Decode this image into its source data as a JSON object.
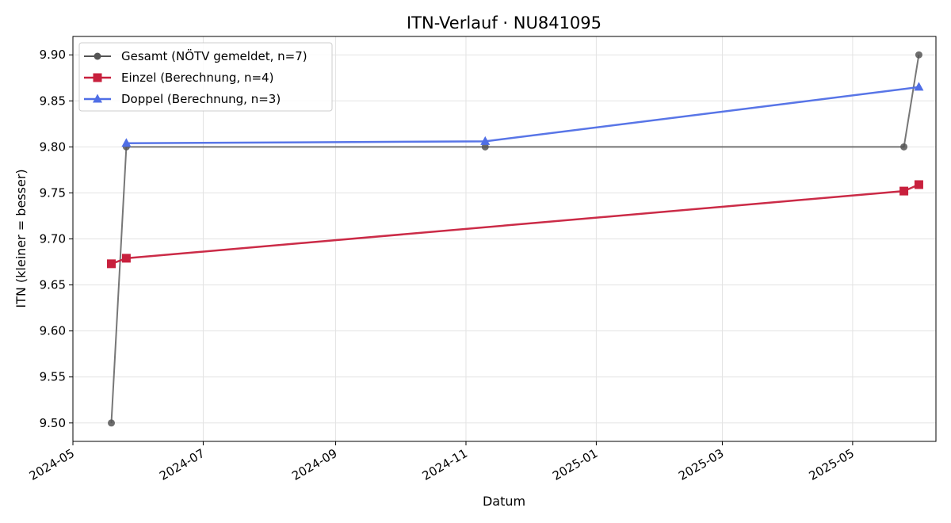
{
  "chart_data": {
    "type": "line",
    "title": "ITN-Verlauf · NU841095",
    "xlabel": "Datum",
    "ylabel": "ITN  (kleiner = besser)",
    "x_type": "date",
    "xlim": [
      "2024-05-01",
      "2025-06-09"
    ],
    "ylim": [
      9.48,
      9.92
    ],
    "x_ticks": [
      "2024-05",
      "2024-07",
      "2024-09",
      "2024-11",
      "2025-01",
      "2025-03",
      "2025-05"
    ],
    "y_ticks": [
      "9.50",
      "9.55",
      "9.60",
      "9.65",
      "9.70",
      "9.75",
      "9.80",
      "9.85",
      "9.90"
    ],
    "grid": true,
    "legend_position": "top-left",
    "series": [
      {
        "name": "Gesamt (NÖTV gemeldet, n=7)",
        "color": "#555555",
        "marker": "circle",
        "x": [
          "2024-05-19",
          "2024-05-26",
          "2024-11-10",
          "2025-05-25",
          "2025-06-01"
        ],
        "y": [
          9.5,
          9.8,
          9.8,
          9.8,
          9.9
        ]
      },
      {
        "name": "Einzel (Berechnung, n=4)",
        "color": "#c8203d",
        "marker": "square",
        "x": [
          "2024-05-19",
          "2024-05-26",
          "2025-05-25",
          "2025-06-01"
        ],
        "y": [
          9.673,
          9.679,
          9.752,
          9.759
        ]
      },
      {
        "name": "Doppel (Berechnung, n=3)",
        "color": "#4f6ee6",
        "marker": "triangle",
        "x": [
          "2024-05-26",
          "2024-11-10",
          "2025-06-01"
        ],
        "y": [
          9.804,
          9.806,
          9.865
        ]
      }
    ]
  }
}
